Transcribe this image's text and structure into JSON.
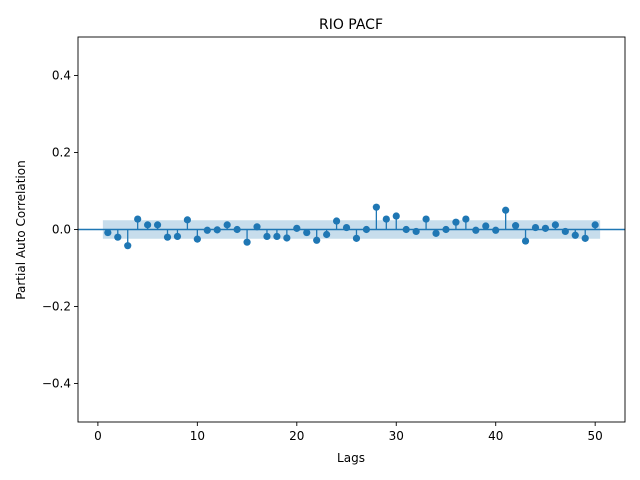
{
  "chart_data": {
    "type": "stem",
    "title": "RIO PACF",
    "xlabel": "Lags",
    "ylabel": "Partial Auto Correlation",
    "xlim": [
      -2,
      53
    ],
    "ylim": [
      -0.5,
      0.5
    ],
    "xticks": [
      0,
      10,
      20,
      30,
      40,
      50
    ],
    "xtick_labels": [
      "0",
      "10",
      "20",
      "30",
      "40",
      "50"
    ],
    "yticks": [
      -0.4,
      -0.2,
      0.0,
      0.2,
      0.4
    ],
    "ytick_labels": [
      "−0.4",
      "−0.2",
      "0.0",
      "0.2",
      "0.4"
    ],
    "confidence_band": {
      "x_start": 0.5,
      "x_end": 50.5,
      "lower": -0.024,
      "upper": 0.024
    },
    "zero_line": 0,
    "lags": [
      1,
      2,
      3,
      4,
      5,
      6,
      7,
      8,
      9,
      10,
      11,
      12,
      13,
      14,
      15,
      16,
      17,
      18,
      19,
      20,
      21,
      22,
      23,
      24,
      25,
      26,
      27,
      28,
      29,
      30,
      31,
      32,
      33,
      34,
      35,
      36,
      37,
      38,
      39,
      40,
      41,
      42,
      43,
      44,
      45,
      46,
      47,
      48,
      49,
      50
    ],
    "values": [
      -0.008,
      -0.02,
      -0.042,
      0.027,
      0.012,
      0.012,
      -0.02,
      -0.018,
      0.025,
      -0.025,
      -0.002,
      -0.001,
      0.012,
      0.0,
      -0.033,
      0.007,
      -0.018,
      -0.018,
      -0.022,
      0.003,
      -0.008,
      -0.028,
      -0.013,
      0.022,
      0.005,
      -0.023,
      0.0,
      0.058,
      0.027,
      0.035,
      0.0,
      -0.005,
      0.027,
      -0.01,
      0.0,
      0.019,
      0.027,
      -0.002,
      0.009,
      -0.002,
      0.05,
      0.01,
      -0.03,
      0.005,
      0.003,
      0.012,
      -0.005,
      -0.015,
      -0.023,
      0.012
    ],
    "colors": {
      "marker": "#1f77b4",
      "band": "#1f77b4",
      "zero_line": "#1f77b4"
    }
  }
}
